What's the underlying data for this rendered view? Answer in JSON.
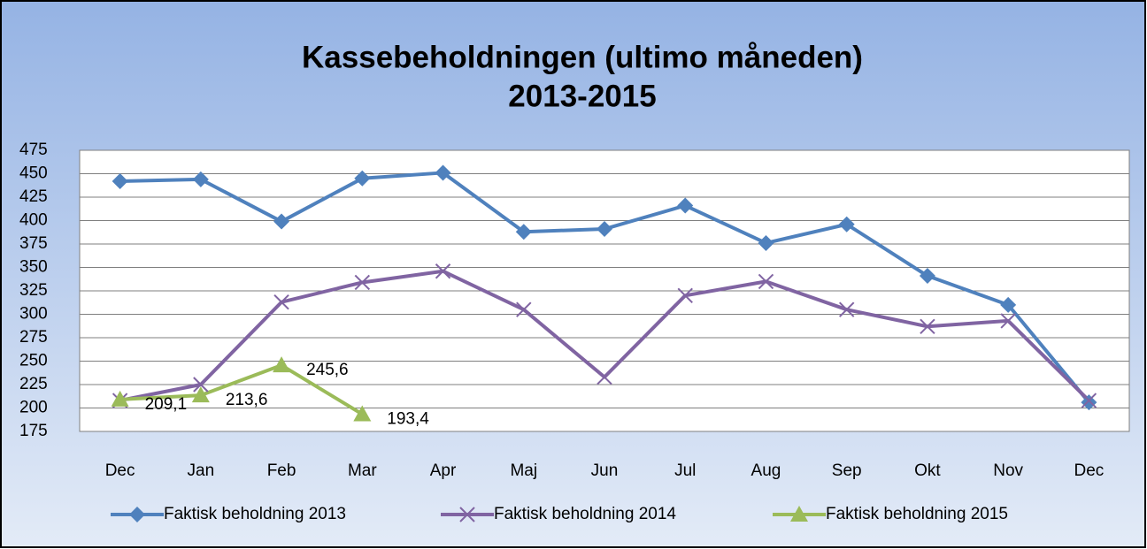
{
  "chart_data": {
    "type": "line",
    "title": [
      "Kassebeholdningen (ultimo måneden)",
      "2013-2015"
    ],
    "categories": [
      "Dec",
      "Jan",
      "Feb",
      "Mar",
      "Apr",
      "Maj",
      "Jun",
      "Jul",
      "Aug",
      "Sep",
      "Okt",
      "Nov",
      "Dec"
    ],
    "series": [
      {
        "name": "Faktisk beholdning 2013",
        "color": "#4f81bd",
        "marker": "diamond",
        "values": [
          442,
          444,
          399,
          445,
          451,
          388,
          391,
          416,
          376,
          396,
          341,
          310,
          206
        ]
      },
      {
        "name": "Faktisk beholdning 2014",
        "color": "#8064a2",
        "marker": "x",
        "values": [
          208,
          225,
          313,
          334,
          346,
          305,
          233,
          320,
          335,
          305,
          287,
          293,
          208
        ]
      },
      {
        "name": "Faktisk beholdning 2015",
        "color": "#9bbb59",
        "marker": "triangle",
        "values": [
          209.1,
          213.6,
          245.6,
          193.4,
          null,
          null,
          null,
          null,
          null,
          null,
          null,
          null,
          null
        ],
        "value_labels": [
          "209,1",
          "213,6",
          "245,6",
          "193,4",
          null,
          null,
          null,
          null,
          null,
          null,
          null,
          null,
          null
        ]
      }
    ],
    "ylim": [
      175,
      475
    ],
    "yticks": [
      175,
      200,
      225,
      250,
      275,
      300,
      325,
      350,
      375,
      400,
      425,
      450,
      475
    ],
    "grid": true,
    "legend": "bottom"
  }
}
